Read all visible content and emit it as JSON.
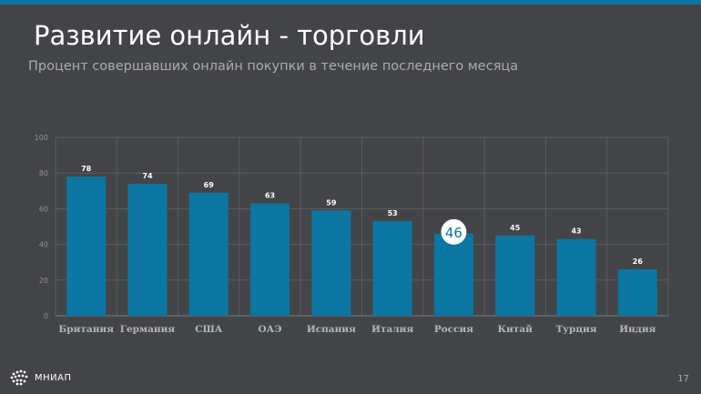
{
  "slide": {
    "title": "Развитие онлайн - торговли",
    "subtitle": "Процент совершавших онлайн покупки в течение последнего месяца",
    "logo_text": "МНИАП",
    "page_number": "17"
  },
  "colors": {
    "background": "#434448",
    "accent": "#0d77a3",
    "bar": "#0b76a2",
    "grid": "#5a5c61",
    "highlight_circle": "#ffffff"
  },
  "chart_data": {
    "type": "bar",
    "categories": [
      "Британия",
      "Германия",
      "США",
      "ОАЭ",
      "Испания",
      "Италия",
      "Россия",
      "Китай",
      "Турция",
      "Индия"
    ],
    "values": [
      78,
      74,
      69,
      63,
      59,
      53,
      46,
      45,
      43,
      26
    ],
    "ylim": [
      0,
      100
    ],
    "yticks": [
      0,
      20,
      40,
      60,
      80,
      100
    ],
    "grid": true,
    "highlight": {
      "category": "Россия",
      "label": "46"
    }
  }
}
